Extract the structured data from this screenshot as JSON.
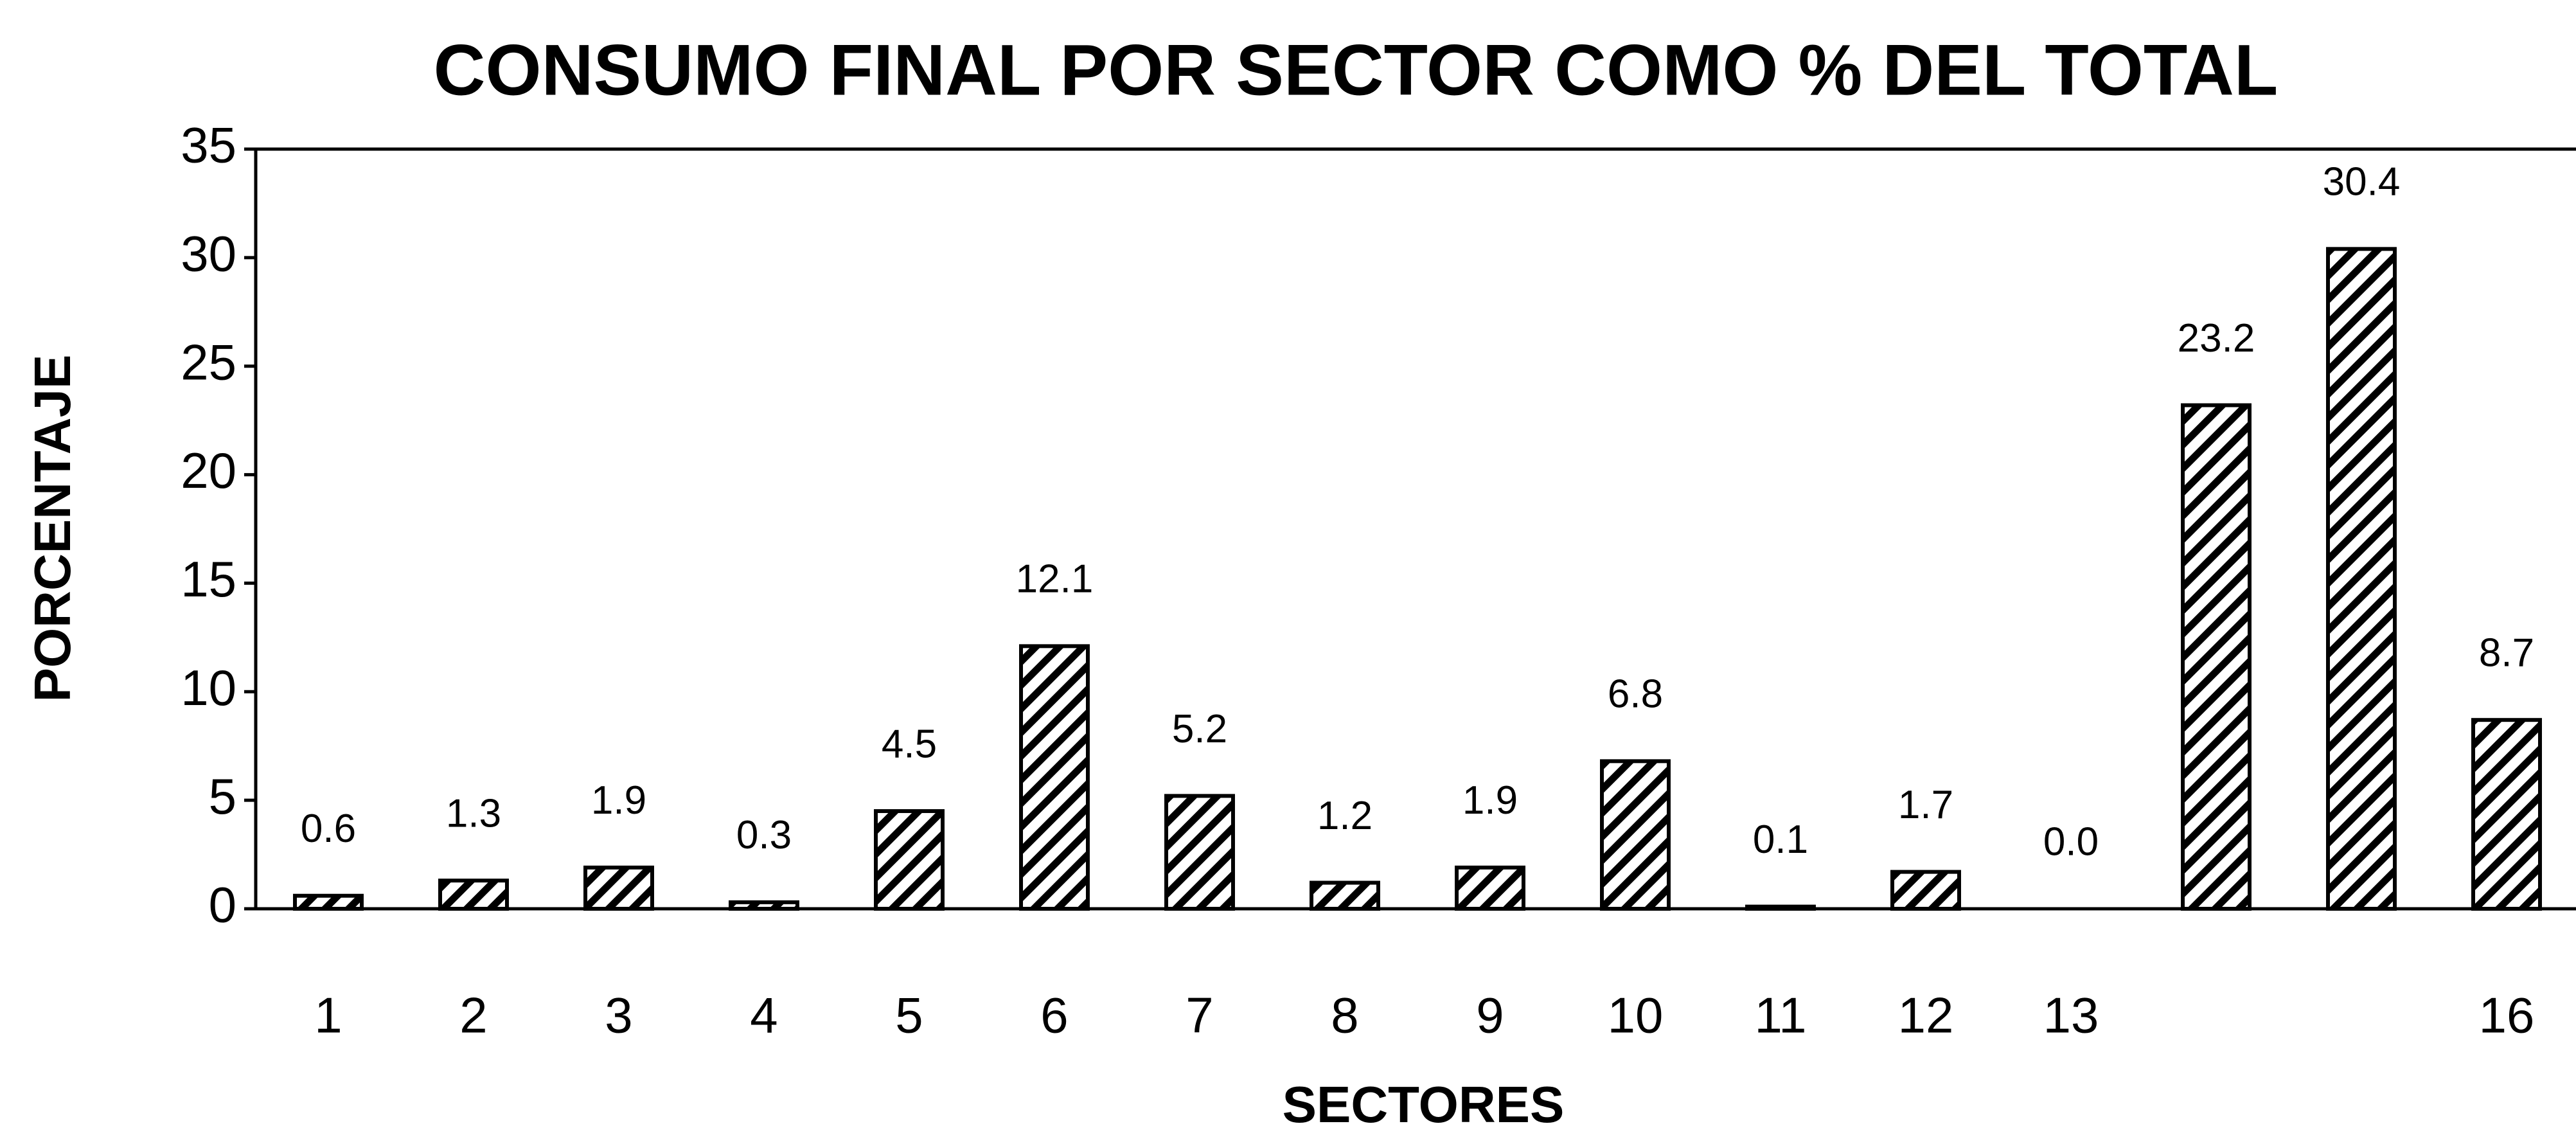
{
  "chart_data": {
    "type": "bar",
    "title": "CONSUMO FINAL POR SECTOR COMO % DEL TOTAL",
    "x_label": "SECTORES",
    "y_label": "PORCENTAJE",
    "categories": [
      "1",
      "2",
      "3",
      "4",
      "5",
      "6",
      "7",
      "8",
      "9",
      "10",
      "11",
      "12",
      "13",
      null,
      null,
      "16"
    ],
    "values": [
      0.6,
      1.3,
      1.9,
      0.3,
      4.5,
      12.1,
      5.2,
      1.2,
      1.9,
      6.8,
      0.1,
      1.7,
      0.0,
      23.2,
      30.4,
      8.7
    ],
    "value_labels": [
      "0.6",
      "1.3",
      "1.9",
      "0.3",
      "4.5",
      "12.1",
      "5.2",
      "1.2",
      "1.9",
      "6.8",
      "0.1",
      "1.7",
      "0.0",
      "23.2",
      "30.4",
      "8.7"
    ],
    "color": "#000000",
    "ylim": [
      0,
      35
    ],
    "yticks": [
      0,
      5,
      10,
      15,
      20,
      25,
      30,
      35
    ],
    "grid": false
  }
}
